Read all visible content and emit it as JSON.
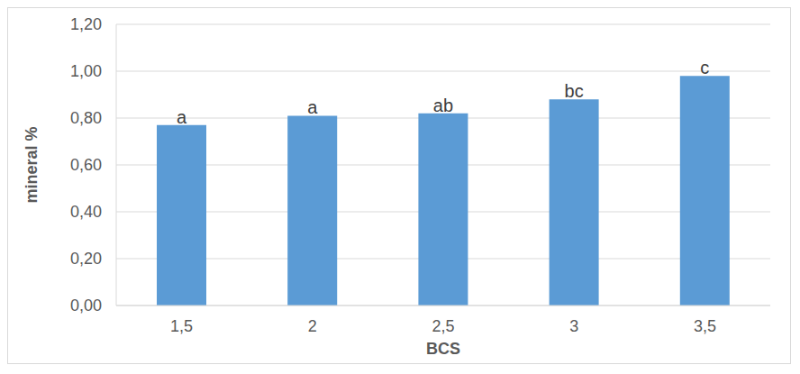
{
  "chart_data": {
    "type": "bar",
    "xlabel": "BCS",
    "ylabel": "mineral %",
    "categories": [
      "1,5",
      "2",
      "2,5",
      "3",
      "3,5"
    ],
    "values": [
      0.77,
      0.81,
      0.82,
      0.88,
      0.98
    ],
    "annotations": [
      "a",
      "a",
      "ab",
      "bc",
      "c"
    ],
    "color": "#5b9bd5",
    "ylim": [
      0,
      1.2
    ],
    "yticks": [
      {
        "value": 0,
        "label": "0,00"
      },
      {
        "value": 0.2,
        "label": "0,20"
      },
      {
        "value": 0.4,
        "label": "0,40"
      },
      {
        "value": 0.6,
        "label": "0,60"
      },
      {
        "value": 0.8,
        "label": "0,80"
      },
      {
        "value": 1.0,
        "label": "1,00"
      },
      {
        "value": 1.2,
        "label": "1,20"
      }
    ],
    "grid": true
  }
}
